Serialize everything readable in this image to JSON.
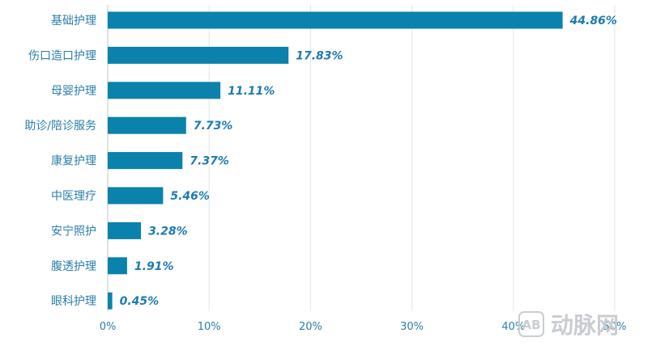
{
  "chart_data": {
    "type": "bar",
    "orientation": "horizontal",
    "categories": [
      "基础护理",
      "伤口造口护理",
      "母婴护理",
      "助诊/陪诊服务",
      "康复护理",
      "中医理疗",
      "安宁照护",
      "腹透护理",
      "眼科护理"
    ],
    "values": [
      44.86,
      17.83,
      11.11,
      7.73,
      7.37,
      5.46,
      3.28,
      1.91,
      0.45
    ],
    "data_labels": [
      "44.86%",
      "17.83%",
      "11.11%",
      "7.73%",
      "7.37%",
      "5.46%",
      "3.28%",
      "1.91%",
      "0.45%"
    ],
    "x_ticks": [
      "0%",
      "10%",
      "20%",
      "30%",
      "40%",
      "50%"
    ],
    "xlim": [
      0,
      50
    ],
    "grid": "vertical",
    "bar_color": "#0a82ab",
    "label_color": "#1e7ab0"
  },
  "watermark": {
    "logo_text": "AB",
    "text": "动脉网"
  }
}
